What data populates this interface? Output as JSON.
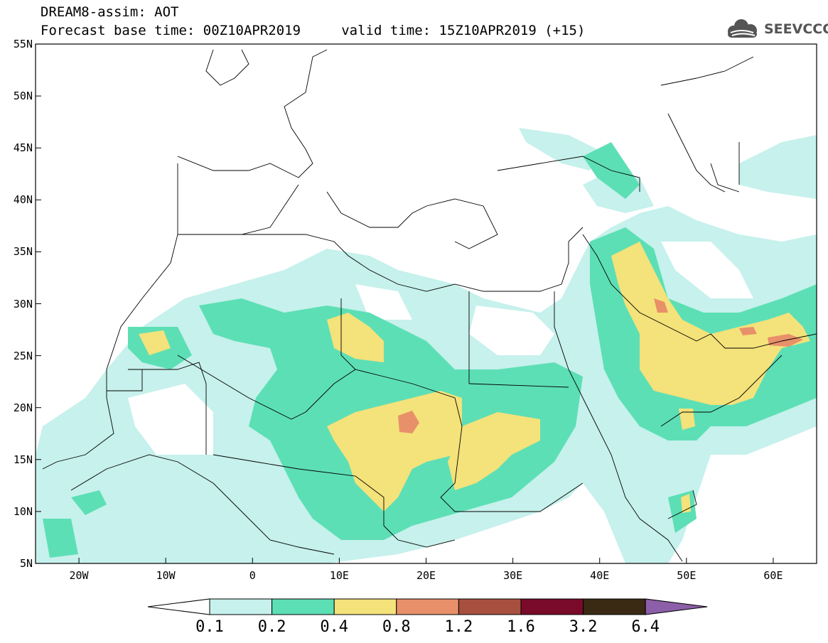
{
  "header": {
    "title_line1": "DREAM8-assim: AOT",
    "title_line2": "Forecast base time: 00Z10APR2019     valid time: 15Z10APR2019 (+15)"
  },
  "logo": {
    "text": "SEEVCCC",
    "icon": "cloud-icon"
  },
  "map": {
    "projection": "lat-lon",
    "lon_range": [
      -25,
      65
    ],
    "lat_range": [
      5,
      55
    ],
    "lat_labels": [
      "55N",
      "50N",
      "45N",
      "40N",
      "35N",
      "30N",
      "25N",
      "20N",
      "15N",
      "10N",
      "5N"
    ],
    "lon_labels": [
      "20W",
      "10W",
      "0",
      "10E",
      "20E",
      "30E",
      "40E",
      "50E",
      "60E"
    ],
    "field": "Aerosol optical thickness (dust)"
  },
  "colorbar": {
    "colors": [
      "#c6f1ec",
      "#5ddfb5",
      "#f4e27a",
      "#e8906a",
      "#a8503f",
      "#7a0a2a",
      "#3a2a14"
    ],
    "under_color": "#ffffff",
    "over_color": "#8c5fa8",
    "labels": [
      "0.1",
      "0.2",
      "0.4",
      "0.8",
      "1.2",
      "1.6",
      "3.2",
      "6.4"
    ]
  }
}
